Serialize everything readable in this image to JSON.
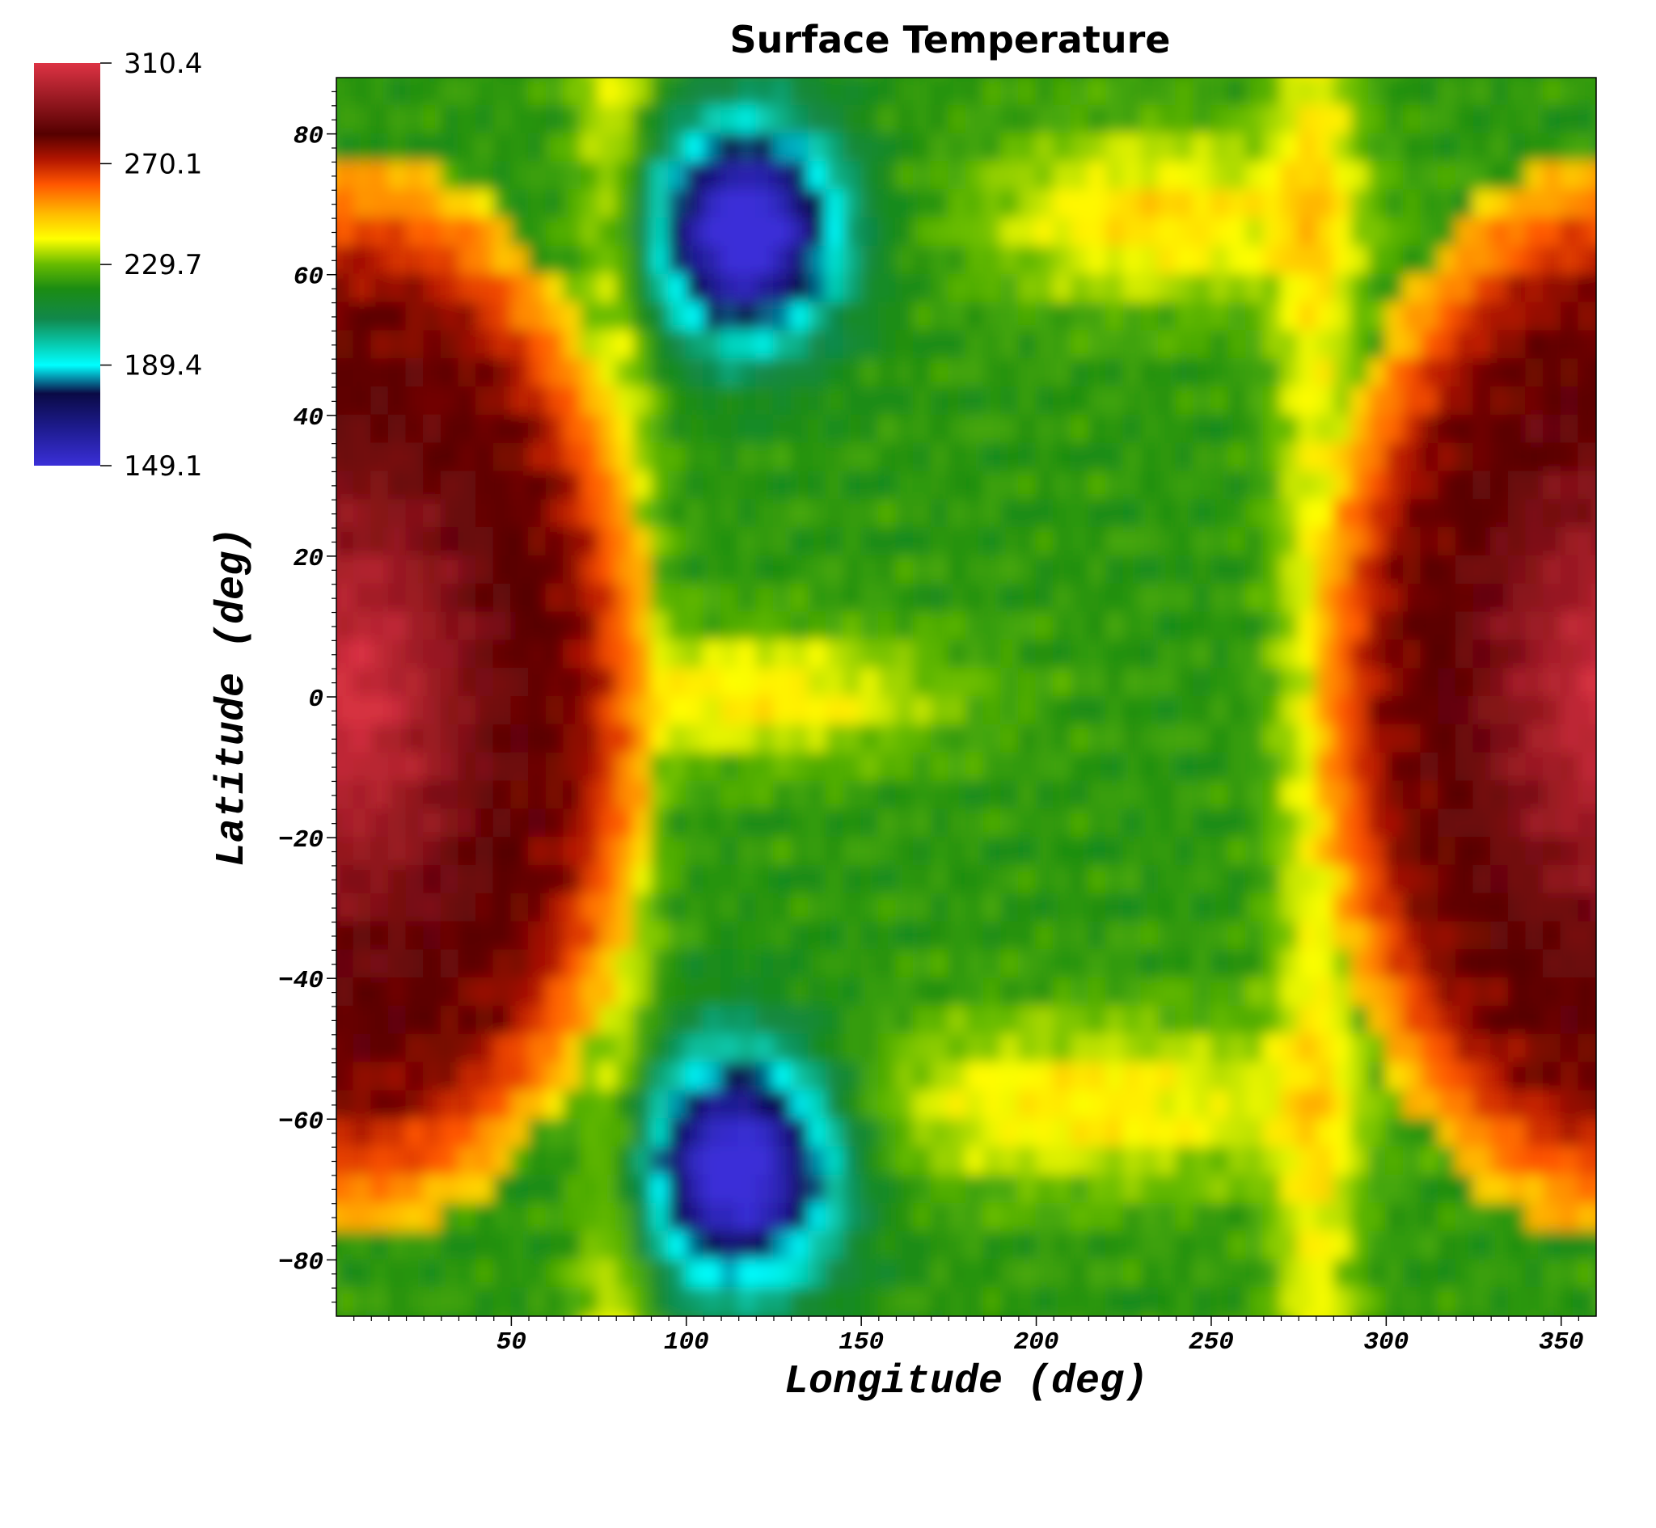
{
  "chart_data": {
    "type": "heatmap",
    "title": "Surface Temperature",
    "xlabel": "Longitude (deg)",
    "ylabel": "Latitude (deg)",
    "xlim": [
      0,
      360
    ],
    "ylim": [
      -88,
      88
    ],
    "xticks": [
      50,
      100,
      150,
      200,
      250,
      300,
      350
    ],
    "yticks": [
      80,
      60,
      40,
      20,
      0,
      -20,
      -40,
      -60,
      -80
    ],
    "xtick_labels": [
      "50",
      "100",
      "150",
      "200",
      "250",
      "300",
      "350"
    ],
    "ytick_labels": [
      "80",
      "60",
      "40",
      "20",
      "0",
      "−20",
      "−40",
      "−60",
      "−80"
    ],
    "colorbar": {
      "min": 149.1,
      "max": 310.4,
      "ticks": [
        310.4,
        270.1,
        229.7,
        189.4,
        149.1
      ],
      "tick_labels": [
        "310.4",
        "270.1",
        "229.7",
        "189.4",
        "149.1"
      ],
      "stops": [
        {
          "value": 149.1,
          "color": "#3a2fd8"
        },
        {
          "value": 165.0,
          "color": "#1c1a8a"
        },
        {
          "value": 178.0,
          "color": "#0a0a45"
        },
        {
          "value": 189.4,
          "color": "#00ffff"
        },
        {
          "value": 208.0,
          "color": "#11884b"
        },
        {
          "value": 220.0,
          "color": "#1b8c12"
        },
        {
          "value": 229.7,
          "color": "#66bb00"
        },
        {
          "value": 240.0,
          "color": "#ffff00"
        },
        {
          "value": 250.0,
          "color": "#ffbb00"
        },
        {
          "value": 262.0,
          "color": "#ff5500"
        },
        {
          "value": 272.0,
          "color": "#b01400"
        },
        {
          "value": 282.0,
          "color": "#550000"
        },
        {
          "value": 310.4,
          "color": "#dd3344"
        }
      ]
    },
    "features": [
      {
        "name": "warm day-side hemisphere",
        "lon_center": 5,
        "lat_center": 0,
        "lon_halfwidth": 65,
        "lat_halfwidth": 60,
        "peak": 310.4,
        "edge": 270
      },
      {
        "name": "north cold pole",
        "lon_center": 117,
        "lat_center": 66,
        "lon_halfwidth": 22,
        "lat_halfwidth": 12,
        "peak": 149.1
      },
      {
        "name": "south cold pole",
        "lon_center": 115,
        "lat_center": -67,
        "lon_halfwidth": 24,
        "lat_halfwidth": 13,
        "peak": 149.1
      },
      {
        "name": "equatorial warm band",
        "lon_range": [
          80,
          165
        ],
        "lat_center": 0,
        "value": 250
      },
      {
        "name": "northern warm arc",
        "lon_range": [
          195,
          280
        ],
        "lat_range": [
          50,
          80
        ],
        "value": 250
      },
      {
        "name": "southern warm arc",
        "lon_range": [
          160,
          290
        ],
        "lat_range": [
          -80,
          -45
        ],
        "value": 245
      },
      {
        "name": "mid-latitude plateau",
        "lon_range": [
          165,
          275
        ],
        "lat_range": [
          -45,
          45
        ],
        "value": 225
      }
    ]
  }
}
